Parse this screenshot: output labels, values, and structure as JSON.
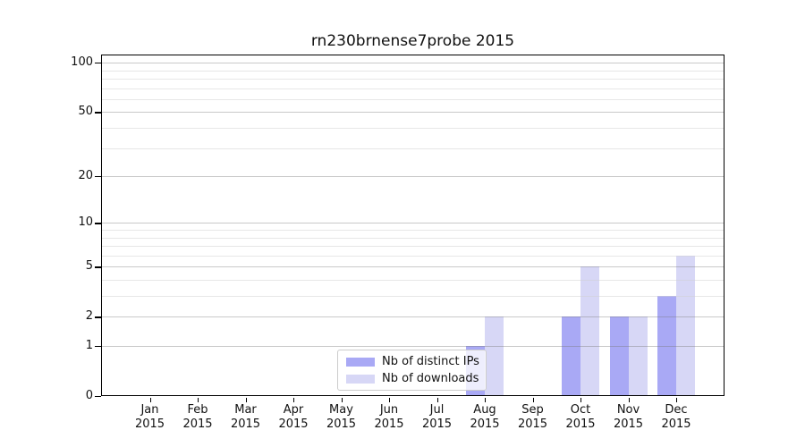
{
  "title": "rn230brnense7probe 2015",
  "colors": {
    "ips": "#a9a9f5",
    "downloads": "#d7d7f6",
    "grid_major": "#c9c9c9",
    "grid_minor": "#ececec",
    "frame": "#000000"
  },
  "legend": {
    "items": [
      {
        "label": "Nb of distinct IPs",
        "series": "ips"
      },
      {
        "label": "Nb of downloads",
        "series": "downloads"
      }
    ]
  },
  "y_axis": {
    "major_ticks": [
      0,
      1,
      2,
      5,
      10,
      20,
      50,
      100
    ],
    "major_tick_labels": [
      "0",
      "1",
      "2",
      "5",
      "10",
      "20",
      "50",
      "100"
    ],
    "minor_ticks": [
      3,
      4,
      6,
      7,
      8,
      9,
      30,
      40,
      60,
      70,
      80,
      90
    ]
  },
  "x_axis": {
    "months": [
      "Jan",
      "Feb",
      "Mar",
      "Apr",
      "May",
      "Jun",
      "Jul",
      "Aug",
      "Sep",
      "Oct",
      "Nov",
      "Dec"
    ],
    "year": "2015"
  },
  "chart_data": {
    "type": "bar",
    "title": "rn230brnense7probe 2015",
    "categories": [
      "Jan 2015",
      "Feb 2015",
      "Mar 2015",
      "Apr 2015",
      "May 2015",
      "Jun 2015",
      "Jul 2015",
      "Aug 2015",
      "Sep 2015",
      "Oct 2015",
      "Nov 2015",
      "Dec 2015"
    ],
    "series": [
      {
        "name": "Nb of distinct IPs",
        "color": "#a9a9f5",
        "values": [
          0,
          0,
          0,
          0,
          0,
          0,
          0,
          1,
          0,
          2,
          2,
          3
        ]
      },
      {
        "name": "Nb of downloads",
        "color": "#d7d7f6",
        "values": [
          0,
          0,
          0,
          0,
          0,
          0,
          0,
          2,
          0,
          5,
          2,
          6
        ]
      }
    ],
    "xlabel": "",
    "ylabel": "",
    "yscale": "log1p",
    "ylim": [
      0,
      112
    ],
    "ytick_values": [
      0,
      1,
      2,
      5,
      10,
      20,
      50,
      100
    ],
    "grid": "horizontal",
    "legend_position": "inside-bottom-center"
  }
}
